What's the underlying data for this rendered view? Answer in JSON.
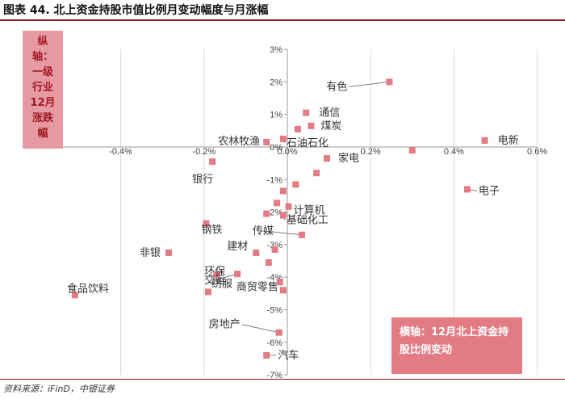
{
  "figure": {
    "title": "图表 44. 北上资金持股市值比例月变动幅度与月涨幅",
    "source": "资料来源：iFinD，中银证券",
    "y_annotation": "纵轴：一级行业12月涨跌幅",
    "x_annotation": "横轴：12月北上资金持股比例变动"
  },
  "colors": {
    "marker": "#e27b84",
    "annotation_bg": "#e27b84",
    "rule": "#8a1c24"
  },
  "chart_data": {
    "type": "scatter",
    "title": "",
    "xlabel": "12月北上资金持股比例变动",
    "ylabel": "一级行业12月涨跌幅",
    "xlim": [
      -0.6,
      0.6
    ],
    "ylim": [
      -7,
      3
    ],
    "x_ticks": [
      "-0.4%",
      "-0.2%",
      "0.0%",
      "0.2%",
      "0.4%",
      "0.6%"
    ],
    "y_ticks": [
      "3%",
      "2%",
      "1%",
      "0%",
      "-1%",
      "-2%",
      "-3%",
      "-4%",
      "-5%",
      "-6%",
      "-7%"
    ],
    "grid": "vertical",
    "points": [
      {
        "name": "有色",
        "x": 0.245,
        "y": 2.0
      },
      {
        "name": "通信",
        "x": 0.045,
        "y": 1.05
      },
      {
        "name": "煤炭",
        "x": 0.057,
        "y": 0.65
      },
      {
        "name": "",
        "x": 0.025,
        "y": 0.55
      },
      {
        "name": "农林牧渔",
        "x": -0.05,
        "y": 0.15
      },
      {
        "name": "石油石化",
        "x": -0.01,
        "y": 0.25
      },
      {
        "name": "电新",
        "x": 0.474,
        "y": 0.2
      },
      {
        "name": "",
        "x": 0.3,
        "y": -0.1
      },
      {
        "name": "家电",
        "x": 0.095,
        "y": -0.35
      },
      {
        "name": "银行",
        "x": -0.18,
        "y": -0.45
      },
      {
        "name": "",
        "x": 0.07,
        "y": -0.8
      },
      {
        "name": "",
        "x": 0.02,
        "y": -1.15
      },
      {
        "name": "电子",
        "x": 0.432,
        "y": -1.3
      },
      {
        "name": "",
        "x": -0.01,
        "y": -1.35
      },
      {
        "name": "",
        "x": -0.025,
        "y": -1.72
      },
      {
        "name": "计算机",
        "x": 0.003,
        "y": -1.83
      },
      {
        "name": "基础化工",
        "x": -0.01,
        "y": -2.1
      },
      {
        "name": "",
        "x": -0.05,
        "y": -2.05
      },
      {
        "name": "钢铁",
        "x": -0.195,
        "y": -2.35
      },
      {
        "name": "传媒",
        "x": 0.035,
        "y": -2.7
      },
      {
        "name": "非银",
        "x": -0.285,
        "y": -3.25
      },
      {
        "name": "",
        "x": -0.03,
        "y": -3.15
      },
      {
        "name": "建材",
        "x": -0.075,
        "y": -3.25
      },
      {
        "name": "",
        "x": -0.045,
        "y": -3.55
      },
      {
        "name": "交运",
        "x": -0.12,
        "y": -3.9
      },
      {
        "name": "环保",
        "x": -0.17,
        "y": -3.92
      },
      {
        "name": "",
        "x": -0.018,
        "y": -4.15
      },
      {
        "name": "纺服",
        "x": -0.19,
        "y": -4.45
      },
      {
        "name": "商贸零售",
        "x": -0.01,
        "y": -4.4
      },
      {
        "name": "食品饮料",
        "x": -0.51,
        "y": -4.55
      },
      {
        "name": "房地产",
        "x": -0.02,
        "y": -5.7
      },
      {
        "name": "汽车",
        "x": -0.05,
        "y": -6.4
      }
    ]
  }
}
